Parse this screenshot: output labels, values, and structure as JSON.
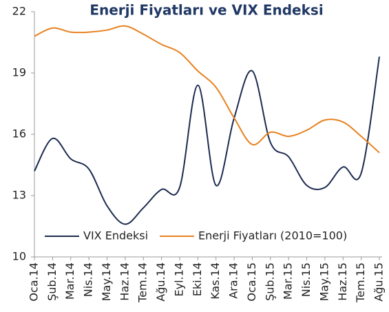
{
  "chart_data": {
    "type": "line",
    "title": "Enerji Fiyatları ve VIX Endeksi",
    "categories": [
      "Oca.14",
      "Şub.14",
      "Mar.14",
      "Nis.14",
      "May.14",
      "Haz.14",
      "Tem.14",
      "Ağu.14",
      "Eyl.14",
      "Eki.14",
      "Kas.14",
      "Ara.14",
      "Oca.15",
      "Şub.15",
      "Mar.15",
      "Nis.15",
      "May.15",
      "Haz.15",
      "Tem.15",
      "Ağu.15"
    ],
    "series": [
      {
        "name": "VIX Endeksi",
        "color": "#1b2a4e",
        "values": [
          14.2,
          15.8,
          14.8,
          14.3,
          12.5,
          11.6,
          12.4,
          13.3,
          13.4,
          18.4,
          13.5,
          16.8,
          19.1,
          15.6,
          14.9,
          13.5,
          13.4,
          14.4,
          14.1,
          19.8
        ]
      },
      {
        "name": "Enerji Fiyatları (2010=100)",
        "color": "#e8801e",
        "values": [
          20.8,
          21.2,
          21.0,
          21.0,
          21.1,
          21.3,
          20.9,
          20.4,
          20.0,
          19.1,
          18.3,
          16.8,
          15.5,
          16.1,
          15.9,
          16.2,
          16.7,
          16.6,
          15.9,
          15.1
        ]
      }
    ],
    "ylim": [
      10,
      22
    ],
    "yticks": [
      10,
      13,
      16,
      19,
      22
    ],
    "grid": false,
    "legend": "bottom"
  }
}
